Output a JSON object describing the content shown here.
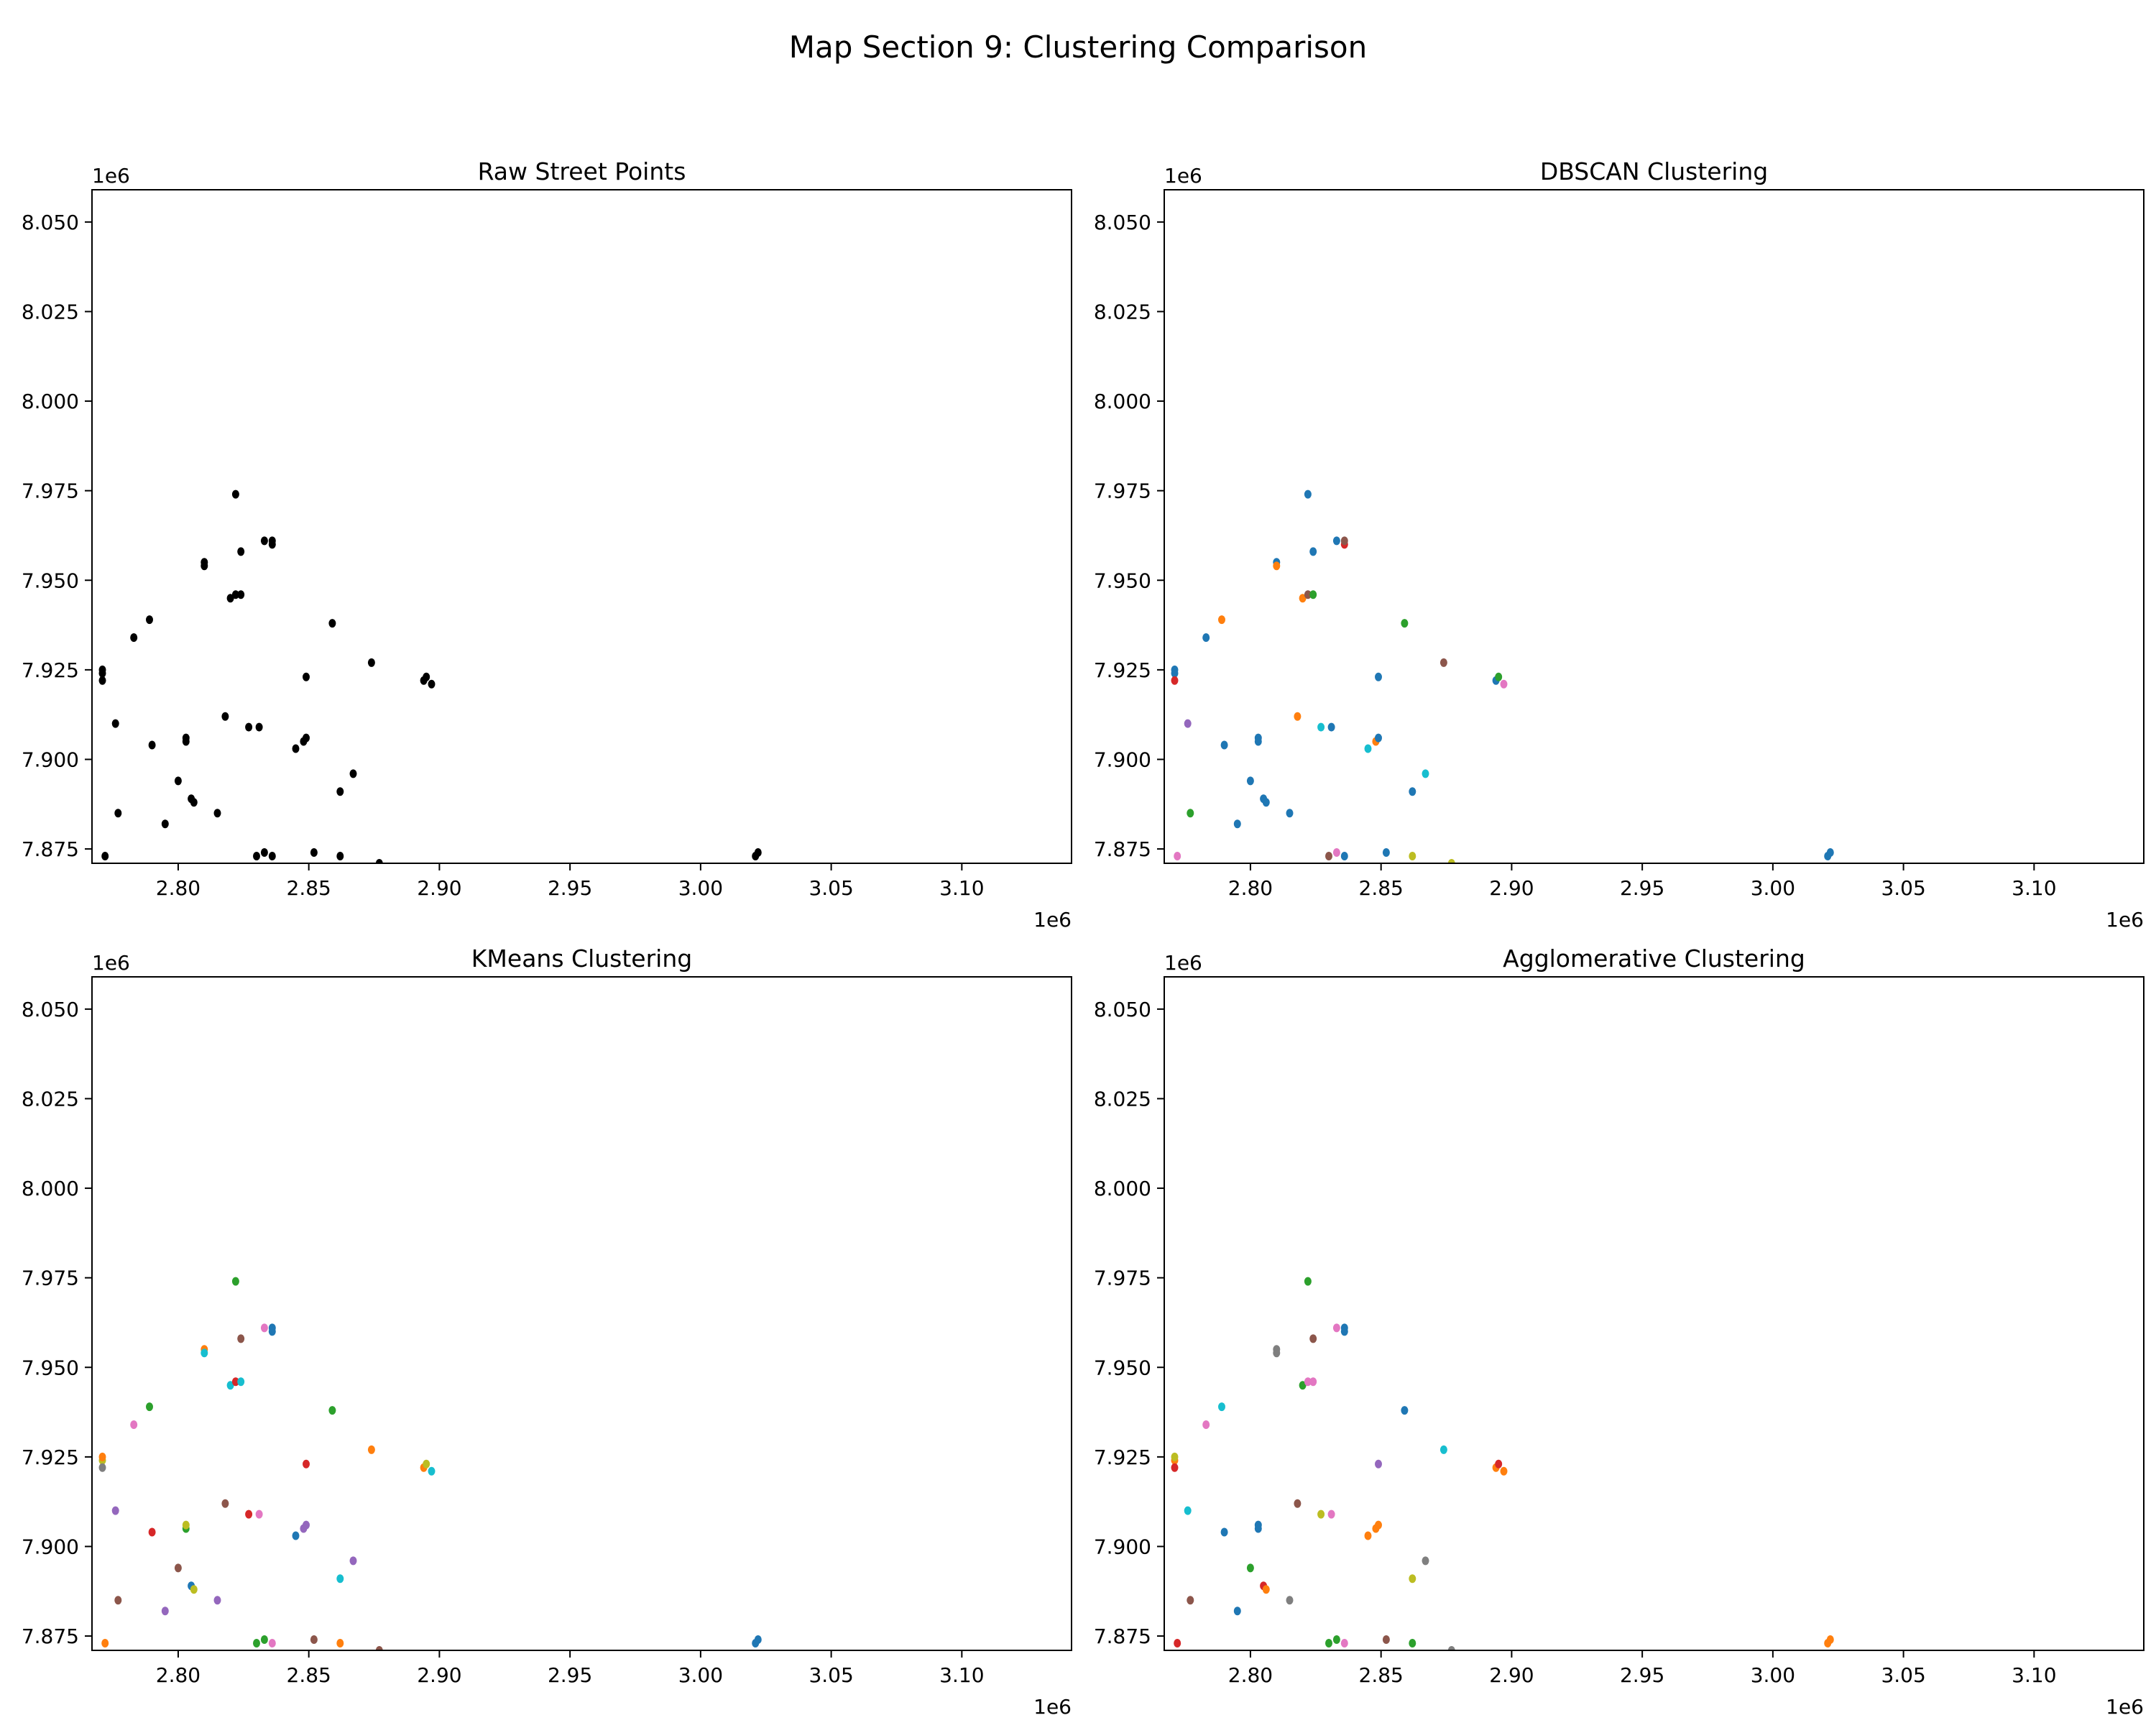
{
  "figure_title": "Map Section 9: Clustering Comparison",
  "colors": {
    "raw": "#000000",
    "palette": [
      "#1f77b4",
      "#ff7f0e",
      "#2ca02c",
      "#d62728",
      "#9467bd",
      "#8c564b",
      "#e377c2",
      "#7f7f7f",
      "#bcbd22",
      "#17becf"
    ]
  },
  "chart_data": [
    {
      "type": "scatter",
      "title": "Raw Street Points",
      "xlim": [
        2.767,
        3.142
      ],
      "ylim": [
        7.871,
        8.059
      ],
      "x_ticks": [
        "2.80",
        "2.85",
        "2.90",
        "2.95",
        "3.00",
        "3.05",
        "3.10"
      ],
      "y_ticks": [
        "7.875",
        "7.900",
        "7.925",
        "7.950",
        "7.975",
        "8.000",
        "8.025",
        "8.050"
      ],
      "x_offset": "1e6",
      "y_offset": "1e6",
      "points": [
        [
          2.771,
          7.924,
          0
        ],
        [
          2.771,
          7.922,
          0
        ],
        [
          2.771,
          7.925,
          0
        ],
        [
          2.772,
          7.873,
          0
        ],
        [
          2.776,
          7.91,
          0
        ],
        [
          2.777,
          7.885,
          0
        ],
        [
          2.783,
          7.934,
          0
        ],
        [
          2.789,
          7.939,
          0
        ],
        [
          2.79,
          7.904,
          0
        ],
        [
          2.795,
          7.882,
          0
        ],
        [
          2.8,
          7.894,
          0
        ],
        [
          2.803,
          7.905,
          0
        ],
        [
          2.803,
          7.906,
          0
        ],
        [
          2.805,
          7.889,
          0
        ],
        [
          2.806,
          7.888,
          0
        ],
        [
          2.81,
          7.955,
          0
        ],
        [
          2.81,
          7.954,
          0
        ],
        [
          2.815,
          7.885,
          0
        ],
        [
          2.818,
          7.912,
          0
        ],
        [
          2.82,
          7.945,
          0
        ],
        [
          2.822,
          7.946,
          0
        ],
        [
          2.822,
          7.974,
          0
        ],
        [
          2.824,
          7.946,
          0
        ],
        [
          2.824,
          7.958,
          0
        ],
        [
          2.827,
          7.909,
          0
        ],
        [
          2.83,
          7.873,
          0
        ],
        [
          2.831,
          7.909,
          0
        ],
        [
          2.833,
          7.874,
          0
        ],
        [
          2.833,
          7.961,
          0
        ],
        [
          2.836,
          7.873,
          0
        ],
        [
          2.836,
          7.96,
          0
        ],
        [
          2.836,
          7.961,
          0
        ],
        [
          2.845,
          7.903,
          0
        ],
        [
          2.848,
          7.905,
          0
        ],
        [
          2.849,
          7.906,
          0
        ],
        [
          2.849,
          7.923,
          0
        ],
        [
          2.852,
          7.874,
          0
        ],
        [
          2.859,
          7.938,
          0
        ],
        [
          2.862,
          7.891,
          0
        ],
        [
          2.862,
          7.873,
          0
        ],
        [
          2.867,
          7.896,
          0
        ],
        [
          2.874,
          7.927,
          0
        ],
        [
          2.877,
          7.871,
          0
        ],
        [
          2.894,
          7.922,
          0
        ],
        [
          2.895,
          7.923,
          0
        ],
        [
          2.897,
          7.921,
          0
        ],
        [
          3.021,
          7.873,
          0
        ],
        [
          3.022,
          7.874,
          0
        ]
      ]
    },
    {
      "type": "scatter",
      "title": "DBSCAN Clustering",
      "xlim": [
        2.767,
        3.142
      ],
      "ylim": [
        7.871,
        8.059
      ],
      "x_ticks": [
        "2.80",
        "2.85",
        "2.90",
        "2.95",
        "3.00",
        "3.05",
        "3.10"
      ],
      "y_ticks": [
        "7.875",
        "7.900",
        "7.925",
        "7.950",
        "7.975",
        "8.000",
        "8.025",
        "8.050"
      ],
      "x_offset": "1e6",
      "y_offset": "1e6",
      "points": [
        [
          2.771,
          7.924,
          0
        ],
        [
          2.771,
          7.922,
          3
        ],
        [
          2.771,
          7.925,
          0
        ],
        [
          2.772,
          7.873,
          6
        ],
        [
          2.776,
          7.91,
          4
        ],
        [
          2.777,
          7.885,
          2
        ],
        [
          2.783,
          7.934,
          0
        ],
        [
          2.789,
          7.939,
          1
        ],
        [
          2.79,
          7.904,
          0
        ],
        [
          2.795,
          7.882,
          0
        ],
        [
          2.8,
          7.894,
          0
        ],
        [
          2.803,
          7.905,
          0
        ],
        [
          2.803,
          7.906,
          0
        ],
        [
          2.805,
          7.889,
          0
        ],
        [
          2.806,
          7.888,
          0
        ],
        [
          2.81,
          7.955,
          0
        ],
        [
          2.81,
          7.954,
          1
        ],
        [
          2.815,
          7.885,
          0
        ],
        [
          2.818,
          7.912,
          1
        ],
        [
          2.82,
          7.945,
          1
        ],
        [
          2.822,
          7.946,
          5
        ],
        [
          2.822,
          7.974,
          0
        ],
        [
          2.824,
          7.946,
          2
        ],
        [
          2.824,
          7.958,
          0
        ],
        [
          2.827,
          7.909,
          9
        ],
        [
          2.83,
          7.873,
          5
        ],
        [
          2.831,
          7.909,
          0
        ],
        [
          2.833,
          7.874,
          6
        ],
        [
          2.833,
          7.961,
          0
        ],
        [
          2.836,
          7.873,
          0
        ],
        [
          2.836,
          7.96,
          3
        ],
        [
          2.836,
          7.961,
          5
        ],
        [
          2.845,
          7.903,
          9
        ],
        [
          2.848,
          7.905,
          1
        ],
        [
          2.849,
          7.906,
          0
        ],
        [
          2.849,
          7.923,
          0
        ],
        [
          2.852,
          7.874,
          0
        ],
        [
          2.859,
          7.938,
          2
        ],
        [
          2.862,
          7.891,
          0
        ],
        [
          2.862,
          7.873,
          8
        ],
        [
          2.867,
          7.896,
          9
        ],
        [
          2.874,
          7.927,
          5
        ],
        [
          2.877,
          7.871,
          8
        ],
        [
          2.894,
          7.922,
          0
        ],
        [
          2.895,
          7.923,
          2
        ],
        [
          2.897,
          7.921,
          6
        ],
        [
          3.021,
          7.873,
          0
        ],
        [
          3.022,
          7.874,
          0
        ]
      ]
    },
    {
      "type": "scatter",
      "title": "KMeans Clustering",
      "xlim": [
        2.767,
        3.142
      ],
      "ylim": [
        7.871,
        8.059
      ],
      "x_ticks": [
        "2.80",
        "2.85",
        "2.90",
        "2.95",
        "3.00",
        "3.05",
        "3.10"
      ],
      "y_ticks": [
        "7.875",
        "7.900",
        "7.925",
        "7.950",
        "7.975",
        "8.000",
        "8.025",
        "8.050"
      ],
      "x_offset": "1e6",
      "y_offset": "1e6",
      "points": [
        [
          2.771,
          7.924,
          8
        ],
        [
          2.771,
          7.922,
          7
        ],
        [
          2.771,
          7.925,
          1
        ],
        [
          2.772,
          7.873,
          1
        ],
        [
          2.776,
          7.91,
          4
        ],
        [
          2.777,
          7.885,
          5
        ],
        [
          2.783,
          7.934,
          6
        ],
        [
          2.789,
          7.939,
          2
        ],
        [
          2.79,
          7.904,
          3
        ],
        [
          2.795,
          7.882,
          4
        ],
        [
          2.8,
          7.894,
          5
        ],
        [
          2.803,
          7.905,
          2
        ],
        [
          2.803,
          7.906,
          8
        ],
        [
          2.805,
          7.889,
          0
        ],
        [
          2.806,
          7.888,
          8
        ],
        [
          2.81,
          7.955,
          1
        ],
        [
          2.81,
          7.954,
          9
        ],
        [
          2.815,
          7.885,
          4
        ],
        [
          2.818,
          7.912,
          5
        ],
        [
          2.82,
          7.945,
          9
        ],
        [
          2.822,
          7.946,
          3
        ],
        [
          2.822,
          7.974,
          2
        ],
        [
          2.824,
          7.946,
          9
        ],
        [
          2.824,
          7.958,
          5
        ],
        [
          2.827,
          7.909,
          3
        ],
        [
          2.83,
          7.873,
          2
        ],
        [
          2.831,
          7.909,
          6
        ],
        [
          2.833,
          7.874,
          2
        ],
        [
          2.833,
          7.961,
          6
        ],
        [
          2.836,
          7.873,
          6
        ],
        [
          2.836,
          7.96,
          0
        ],
        [
          2.836,
          7.961,
          0
        ],
        [
          2.845,
          7.903,
          0
        ],
        [
          2.848,
          7.905,
          4
        ],
        [
          2.849,
          7.906,
          4
        ],
        [
          2.849,
          7.923,
          3
        ],
        [
          2.852,
          7.874,
          5
        ],
        [
          2.859,
          7.938,
          2
        ],
        [
          2.862,
          7.891,
          9
        ],
        [
          2.862,
          7.873,
          1
        ],
        [
          2.867,
          7.896,
          4
        ],
        [
          2.874,
          7.927,
          1
        ],
        [
          2.877,
          7.871,
          5
        ],
        [
          2.894,
          7.922,
          1
        ],
        [
          2.895,
          7.923,
          8
        ],
        [
          2.897,
          7.921,
          9
        ],
        [
          3.021,
          7.873,
          0
        ],
        [
          3.022,
          7.874,
          0
        ]
      ]
    },
    {
      "type": "scatter",
      "title": "Agglomerative Clustering",
      "xlim": [
        2.767,
        3.142
      ],
      "ylim": [
        7.871,
        8.059
      ],
      "x_ticks": [
        "2.80",
        "2.85",
        "2.90",
        "2.95",
        "3.00",
        "3.05",
        "3.10"
      ],
      "y_ticks": [
        "7.875",
        "7.900",
        "7.925",
        "7.950",
        "7.975",
        "8.000",
        "8.025",
        "8.050"
      ],
      "x_offset": "1e6",
      "y_offset": "1e6",
      "points": [
        [
          2.771,
          7.924,
          1
        ],
        [
          2.771,
          7.922,
          3
        ],
        [
          2.771,
          7.925,
          8
        ],
        [
          2.772,
          7.873,
          3
        ],
        [
          2.776,
          7.91,
          9
        ],
        [
          2.777,
          7.885,
          5
        ],
        [
          2.783,
          7.934,
          6
        ],
        [
          2.789,
          7.939,
          9
        ],
        [
          2.79,
          7.904,
          0
        ],
        [
          2.795,
          7.882,
          0
        ],
        [
          2.8,
          7.894,
          2
        ],
        [
          2.803,
          7.905,
          0
        ],
        [
          2.803,
          7.906,
          0
        ],
        [
          2.805,
          7.889,
          3
        ],
        [
          2.806,
          7.888,
          1
        ],
        [
          2.81,
          7.955,
          7
        ],
        [
          2.81,
          7.954,
          7
        ],
        [
          2.815,
          7.885,
          7
        ],
        [
          2.818,
          7.912,
          5
        ],
        [
          2.82,
          7.945,
          2
        ],
        [
          2.822,
          7.946,
          6
        ],
        [
          2.822,
          7.974,
          2
        ],
        [
          2.824,
          7.946,
          6
        ],
        [
          2.824,
          7.958,
          5
        ],
        [
          2.827,
          7.909,
          8
        ],
        [
          2.83,
          7.873,
          2
        ],
        [
          2.831,
          7.909,
          6
        ],
        [
          2.833,
          7.874,
          2
        ],
        [
          2.833,
          7.961,
          6
        ],
        [
          2.836,
          7.873,
          6
        ],
        [
          2.836,
          7.96,
          0
        ],
        [
          2.836,
          7.961,
          0
        ],
        [
          2.845,
          7.903,
          1
        ],
        [
          2.848,
          7.905,
          1
        ],
        [
          2.849,
          7.906,
          1
        ],
        [
          2.849,
          7.923,
          4
        ],
        [
          2.852,
          7.874,
          5
        ],
        [
          2.859,
          7.938,
          0
        ],
        [
          2.862,
          7.891,
          8
        ],
        [
          2.862,
          7.873,
          2
        ],
        [
          2.867,
          7.896,
          7
        ],
        [
          2.874,
          7.927,
          9
        ],
        [
          2.877,
          7.871,
          7
        ],
        [
          2.894,
          7.922,
          1
        ],
        [
          2.895,
          7.923,
          3
        ],
        [
          2.897,
          7.921,
          1
        ],
        [
          3.021,
          7.873,
          1
        ],
        [
          3.022,
          7.874,
          1
        ]
      ]
    }
  ]
}
